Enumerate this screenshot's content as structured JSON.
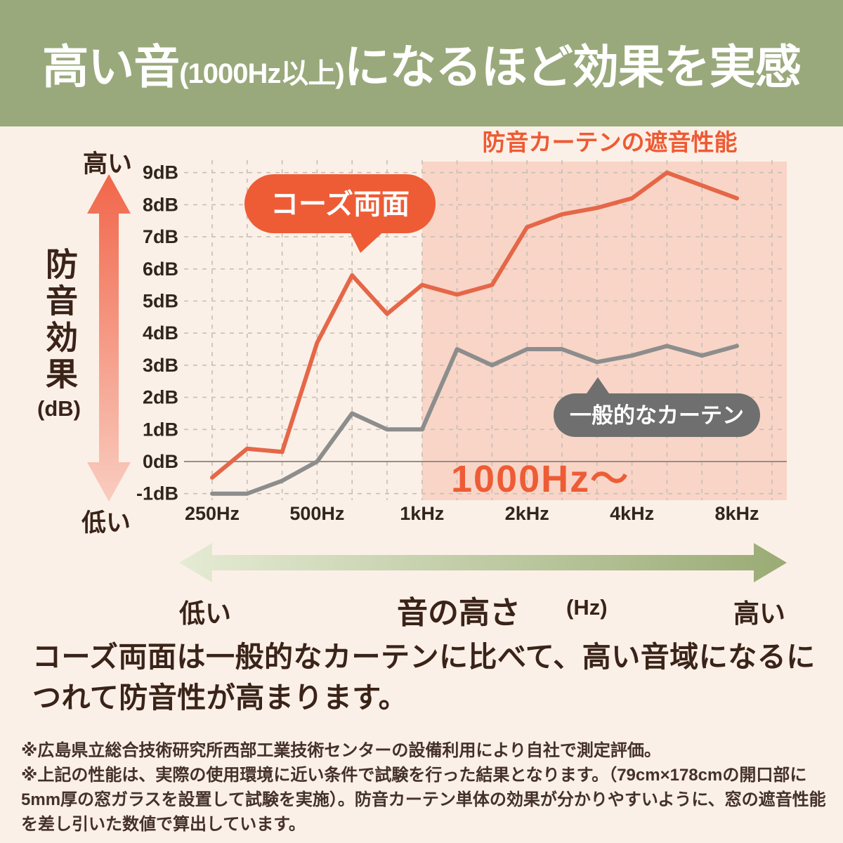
{
  "header": {
    "title_main": "高い音",
    "title_paren": "(1000Hz以上)",
    "title_rest": "になるほど効果を実感"
  },
  "colors": {
    "header_bg": "#9aa97b",
    "page_bg": "#fbf0e7",
    "accent_orange": "#ee5c35",
    "line_orange": "#e56748",
    "line_gray": "#8d8d8d",
    "bubble_gray": "#6f6f6f",
    "highlight_pink": "#f8d5c7",
    "grid_dash": "#c6bfb6",
    "zero_line": "#968f86",
    "text_dark": "#3a2318"
  },
  "chart_data": {
    "type": "line",
    "title": "防音カーテンの遮音性能",
    "x_scale": "log, 1/3-octave points",
    "xlabel": "音の高さ (Hz)",
    "ylabel": "防音効果 (dB)",
    "ylim": [
      -1.3,
      9.4
    ],
    "grid": true,
    "categories_hz": [
      250,
      315,
      400,
      500,
      630,
      800,
      1000,
      1250,
      1600,
      2000,
      2500,
      3150,
      4000,
      5000,
      6300,
      8000
    ],
    "x_ticks": [
      {
        "index": 0,
        "label": "250Hz"
      },
      {
        "index": 3,
        "label": "500Hz"
      },
      {
        "index": 6,
        "label": "1kHz"
      },
      {
        "index": 9,
        "label": "2kHz"
      },
      {
        "index": 12,
        "label": "4kHz"
      },
      {
        "index": 15,
        "label": "8kHz"
      }
    ],
    "y_ticks": [
      {
        "value": 9,
        "label": "9dB"
      },
      {
        "value": 8,
        "label": "8dB"
      },
      {
        "value": 7,
        "label": "7dB"
      },
      {
        "value": 6,
        "label": "6dB"
      },
      {
        "value": 5,
        "label": "5dB"
      },
      {
        "value": 4,
        "label": "4dB"
      },
      {
        "value": 3,
        "label": "3dB"
      },
      {
        "value": 2,
        "label": "2dB"
      },
      {
        "value": 1,
        "label": "1dB"
      },
      {
        "value": 0,
        "label": "0dB"
      },
      {
        "value": -1,
        "label": "-1dB"
      }
    ],
    "series": [
      {
        "name": "コーズ両面",
        "color": "#e56748",
        "values": [
          -0.5,
          0.4,
          0.3,
          3.7,
          5.8,
          4.6,
          5.5,
          5.2,
          5.5,
          7.3,
          7.7,
          7.9,
          8.2,
          9.0,
          8.6,
          8.2
        ]
      },
      {
        "name": "一般的なカーテン",
        "color": "#8d8d8d",
        "values": [
          -1.0,
          -1.0,
          -0.6,
          0.0,
          1.5,
          1.0,
          1.0,
          3.5,
          3.0,
          3.5,
          3.5,
          3.1,
          3.3,
          3.6,
          3.3,
          3.6
        ]
      }
    ],
    "highlight_region": {
      "from_hz": 1000,
      "label": "1000Hz〜",
      "fill": "#f8d5c7"
    }
  },
  "y_axis": {
    "top_label": "高い",
    "bottom_label": "低い",
    "label": "防音効果",
    "unit": "(dB)"
  },
  "x_axis": {
    "left_label": "低い",
    "label": "音の高さ",
    "unit": "(Hz)",
    "right_label": "高い"
  },
  "paragraph": {
    "line1": "コーズ両面は一般的なカーテンに比べて、高い音域になるに",
    "line2": "つれて防音性が高まります。"
  },
  "footnotes": {
    "lines": [
      "※広島県立総合技術研究所西部工業技術センターの設備利用により自社で測定評価。",
      "※上記の性能は、実際の使用環境に近い条件で試験を行った結果となります。（79cm×178cmの開口部に",
      "5mm厚の窓ガラスを設置して試験を実施）。防音カーテン単体の効果が分かりやすいように、窓の遮音性能",
      "を差し引いた数値で算出しています。"
    ]
  }
}
